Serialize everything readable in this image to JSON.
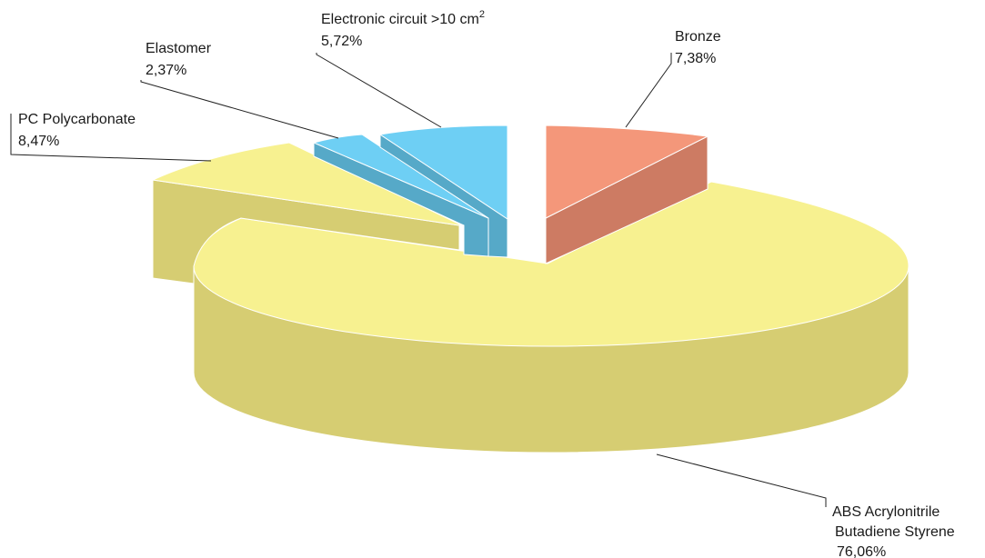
{
  "chart_data": {
    "type": "pie",
    "style": "3d-exploded",
    "slices": [
      {
        "label": "Bronze",
        "value_text": "7,38%",
        "value": 7.38,
        "top_color": "#f4977a",
        "side_color": "#cd7b63"
      },
      {
        "label_lines": [
          "ABS Acrylonitrile",
          "Butadiene Styrene"
        ],
        "value_text": "76,06%",
        "value": 76.06,
        "top_color": "#f7f190",
        "side_color": "#d6cd72"
      },
      {
        "label": "PC Polycarbonate",
        "value_text": "8,47%",
        "value": 8.47,
        "top_color": "#f7f190",
        "side_color": "#d6cd72"
      },
      {
        "label": "Elastomer",
        "value_text": "2,37%",
        "value": 2.37,
        "top_color": "#6ecff4",
        "side_color": "#56a9c8"
      },
      {
        "label": "Electronic circuit >10 cm",
        "label_sup": "2",
        "value_text": "5,72%",
        "value": 5.72,
        "top_color": "#6ecff4",
        "side_color": "#56a9c8"
      }
    ]
  }
}
